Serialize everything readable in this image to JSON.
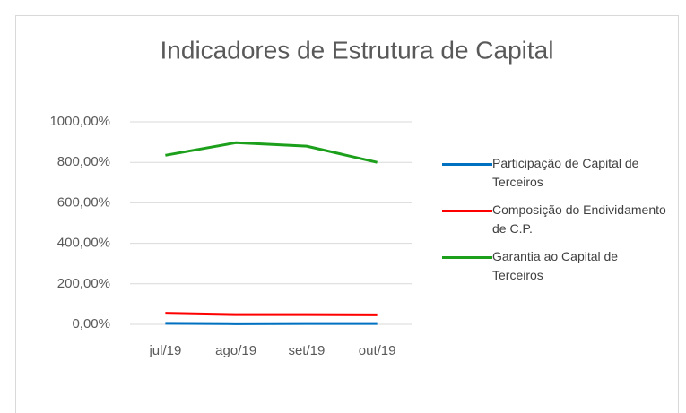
{
  "chart_data": {
    "type": "line",
    "title": "Indicadores de Estrutura de Capital",
    "categories": [
      "jul/19",
      "ago/19",
      "set/19",
      "out/19"
    ],
    "series": [
      {
        "name": "Participação de Capital de Terceiros",
        "color": "#0070c0",
        "values": [
          5,
          3,
          4,
          4
        ]
      },
      {
        "name": "Composição do Endividamento de C.P.",
        "color": "#ff0000",
        "values": [
          55,
          48,
          48,
          47
        ]
      },
      {
        "name": "Garantia ao Capital de Terceiros",
        "color": "#1ca01c",
        "values": [
          835,
          897,
          880,
          800
        ]
      }
    ],
    "ylim": [
      0,
      1000
    ],
    "yticks": [
      {
        "value": 0,
        "label": "0,00%"
      },
      {
        "value": 200,
        "label": "200,00%"
      },
      {
        "value": 400,
        "label": "400,00%"
      },
      {
        "value": 600,
        "label": "600,00%"
      },
      {
        "value": 800,
        "label": "800,00%"
      },
      {
        "value": 1000,
        "label": "1000,00%"
      }
    ],
    "grid": true,
    "legend": "right"
  }
}
